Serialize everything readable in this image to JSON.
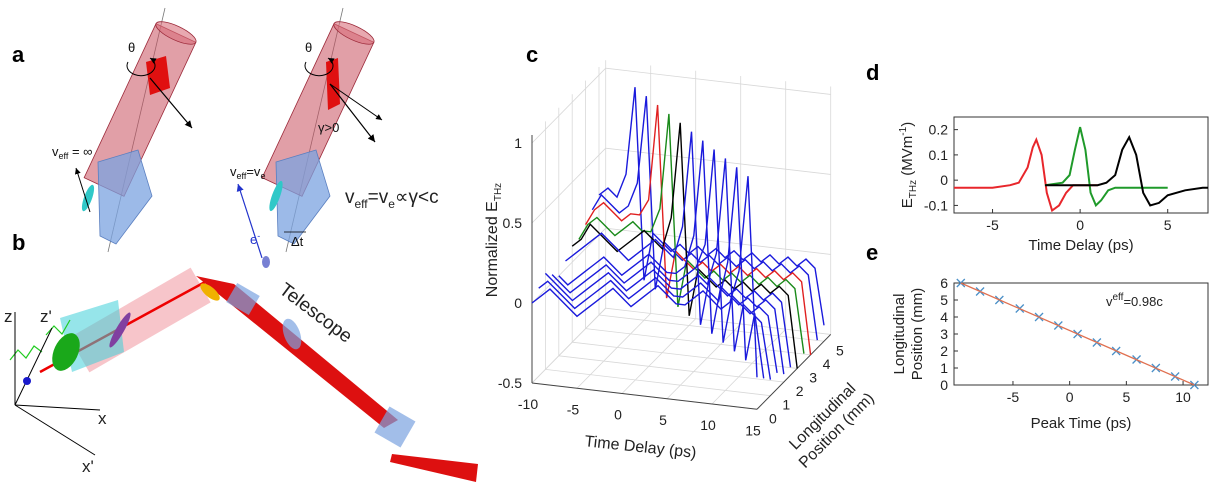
{
  "panels": {
    "a": {
      "label": "a",
      "theta_left": "θ",
      "theta_right": "θ",
      "veff_inf": {
        "v": "v",
        "sub": "eff",
        "rest": " = ∞"
      },
      "veff_ve": {
        "v": "v",
        "sub": "eff",
        "mid": "=v",
        "sub2": "e"
      },
      "gamma": "γ>0",
      "electron": {
        "e": "e",
        "sup": "-"
      },
      "dt": "Δt",
      "relation": {
        "v": "v",
        "sub": "eff",
        "mid": "=v",
        "sub2": "e",
        "rest": "∝γ<c"
      }
    },
    "b": {
      "label": "b",
      "z": "z",
      "z_prime": "z'",
      "x": "x",
      "x_prime": "x'",
      "telescope": "Telescope"
    },
    "c": {
      "label": "c"
    },
    "d": {
      "label": "d"
    },
    "e": {
      "label": "e"
    }
  },
  "chart_data": [
    {
      "type": "waterfall",
      "xlabel": "Time Delay (ps)",
      "ylabel": {
        "text": "Normalized E",
        "sub": "THz"
      },
      "zlabel": [
        "Longitudinal",
        "Position (mm)"
      ],
      "x": [
        -10,
        -9,
        -8,
        -7,
        -6,
        -5,
        -4,
        -3,
        -2,
        -1,
        0,
        1,
        2,
        3,
        4,
        5,
        6,
        7,
        8,
        9,
        10,
        11,
        12,
        13,
        14,
        15
      ],
      "xlim": [
        -10,
        15
      ],
      "xticks": [
        -10,
        -5,
        0,
        5,
        10,
        15
      ],
      "ylim": [
        -0.5,
        1.05
      ],
      "yticks": [
        -0.5,
        0,
        0.5,
        1
      ],
      "zlim": [
        0,
        5.5
      ],
      "zticks": [
        0,
        1,
        2,
        3,
        4,
        5
      ],
      "series": [
        {
          "position": 5,
          "color": "#1a1adc",
          "values": [
            0.25,
            0.3,
            0.25,
            0.4,
            0.95,
            -0.25,
            0.05,
            0,
            -0.05,
            0,
            -0.05,
            0,
            -0.05,
            0,
            -0.05,
            0,
            -0.05,
            0,
            -0.05,
            0,
            -0.05,
            0,
            -0.05,
            0,
            -0.05,
            -0.4
          ]
        },
        {
          "position": 4.5,
          "color": "#1a1adc",
          "values": [
            0.2,
            0.3,
            0.25,
            0.2,
            0.25,
            0.4,
            0.95,
            -0.25,
            0.05,
            0,
            -0.05,
            0,
            -0.05,
            0,
            -0.05,
            0,
            -0.05,
            0,
            -0.05,
            0,
            -0.05,
            0,
            -0.05,
            0,
            -0.05,
            -0.45
          ]
        },
        {
          "position": 4,
          "color": "#e02020",
          "values": [
            0.15,
            0.25,
            0.3,
            0.25,
            0.2,
            0.25,
            0.25,
            0.35,
            0.95,
            -0.25,
            0.05,
            0,
            -0.05,
            0,
            -0.05,
            0,
            -0.05,
            0,
            -0.05,
            0,
            -0.05,
            0,
            -0.05,
            0,
            -0.05,
            -0.5
          ]
        },
        {
          "position": 3.5,
          "color": "#1a8a1a",
          "values": [
            0.1,
            0.2,
            0.25,
            0.2,
            0.15,
            0.2,
            0.25,
            0.2,
            0.2,
            0.35,
            0.95,
            -0.25,
            0.05,
            0,
            -0.05,
            0,
            -0.05,
            0,
            -0.05,
            0,
            -0.05,
            0,
            -0.05,
            0,
            -0.05,
            -0.45
          ]
        },
        {
          "position": 3,
          "color": "#000000",
          "values": [
            0.1,
            0.15,
            0.25,
            0.2,
            0.15,
            0.1,
            0.15,
            0.2,
            0.25,
            0.2,
            0.15,
            0.35,
            0.95,
            -0.25,
            0.05,
            0,
            -0.05,
            0,
            -0.05,
            0,
            -0.05,
            0,
            -0.05,
            0,
            -0.05,
            -0.5
          ]
        },
        {
          "position": 2.5,
          "color": "#1a1adc",
          "values": [
            0.05,
            0.1,
            0.15,
            0.2,
            0.25,
            0.2,
            0.15,
            0.1,
            0.15,
            0.2,
            0.25,
            0.2,
            0.15,
            0.35,
            0.95,
            -0.25,
            0.05,
            0,
            -0.05,
            0,
            -0.05,
            0,
            -0.05,
            0,
            -0.05,
            -0.45
          ]
        },
        {
          "position": 2,
          "color": "#1a1adc",
          "values": [
            0,
            -0.05,
            0,
            0.05,
            0.1,
            0.15,
            0.1,
            0.05,
            0.1,
            0.15,
            0.2,
            0.15,
            0.1,
            0.1,
            0.15,
            0.35,
            0.95,
            -0.25,
            0.05,
            0,
            -0.05,
            0,
            -0.05,
            0,
            -0.05,
            -0.45
          ]
        },
        {
          "position": 1.5,
          "color": "#1a1adc",
          "values": [
            0.05,
            0,
            -0.05,
            0,
            0.05,
            0.1,
            0.15,
            0.1,
            0.05,
            0.1,
            0.15,
            0.2,
            0.15,
            0.1,
            0.1,
            0.15,
            0.2,
            0.35,
            0.95,
            -0.25,
            0.05,
            0,
            -0.05,
            0,
            -0.05,
            -0.4
          ]
        },
        {
          "position": 1,
          "color": "#1a1adc",
          "values": [
            0.1,
            0.05,
            0,
            -0.05,
            0,
            0.05,
            0.1,
            0.15,
            0.1,
            0.05,
            0.1,
            0.15,
            0.2,
            0.15,
            0.1,
            0.1,
            0.15,
            0.2,
            0.15,
            0.35,
            0.95,
            -0.25,
            0.05,
            0,
            -0.05,
            -0.4
          ]
        },
        {
          "position": 0.5,
          "color": "#1a1adc",
          "values": [
            0.05,
            0.1,
            0.05,
            0,
            -0.05,
            0,
            0.05,
            0.1,
            0.15,
            0.1,
            0.05,
            0.1,
            0.15,
            0.2,
            0.15,
            0.1,
            0.1,
            0.15,
            0.2,
            0.15,
            0.1,
            0.35,
            0.95,
            -0.25,
            0.05,
            -0.35
          ]
        },
        {
          "position": 0,
          "color": "#1a1adc",
          "values": [
            0,
            0.05,
            0.1,
            0.05,
            0,
            -0.05,
            0,
            0.05,
            0.1,
            0.15,
            0.1,
            0.05,
            0.1,
            0.15,
            0.2,
            0.15,
            0.1,
            0.1,
            0.15,
            0.2,
            0.15,
            0.1,
            0.15,
            0.35,
            0.95,
            -0.3
          ]
        }
      ]
    },
    {
      "type": "line",
      "xlabel": "Time Delay (ps)",
      "ylabel": {
        "text": "E",
        "sub": "THz",
        "unit": " (MVm",
        "sup": "-1",
        "close": ")"
      },
      "xlim": [
        -7.2,
        7.3
      ],
      "xticks": [
        -5,
        0,
        5
      ],
      "ylim": [
        -0.13,
        0.25
      ],
      "yticks": [
        -0.1,
        0,
        0.1,
        0.2
      ],
      "series": [
        {
          "color": "#e8262b",
          "x": [
            -7.2,
            -6,
            -5,
            -4,
            -3.5,
            -3,
            -2.7,
            -2.5,
            -2.2,
            -1.9,
            -1.6,
            -1.2,
            -0.8,
            -0.4,
            0,
            0.5,
            1
          ],
          "values": [
            -0.03,
            -0.03,
            -0.03,
            -0.02,
            -0.01,
            0.05,
            0.13,
            0.16,
            0.1,
            -0.05,
            -0.12,
            -0.1,
            -0.05,
            -0.02,
            -0.02,
            -0.02,
            -0.02
          ]
        },
        {
          "color": "#1f9a2a",
          "x": [
            -2,
            -1,
            -0.6,
            -0.3,
            0,
            0.3,
            0.6,
            0.9,
            1.2,
            1.6,
            2,
            3,
            4,
            5
          ],
          "values": [
            -0.02,
            -0.01,
            0.02,
            0.12,
            0.21,
            0.12,
            -0.05,
            -0.1,
            -0.08,
            -0.04,
            -0.03,
            -0.03,
            -0.03,
            -0.03
          ]
        },
        {
          "color": "#000000",
          "x": [
            -2,
            -1,
            0,
            1,
            1.5,
            2,
            2.4,
            2.8,
            3.2,
            3.6,
            4,
            4.5,
            5,
            6,
            7,
            7.3
          ],
          "values": [
            -0.02,
            -0.02,
            -0.02,
            -0.02,
            -0.01,
            0.02,
            0.12,
            0.17,
            0.1,
            -0.05,
            -0.1,
            -0.09,
            -0.06,
            -0.04,
            -0.03,
            -0.03
          ]
        }
      ]
    },
    {
      "type": "scatter",
      "xlabel": "Peak Time (ps)",
      "ylabel": [
        "Longitudinal",
        "Position (mm)"
      ],
      "annotation": {
        "v": "v",
        "sup": "eff",
        "rest": "=0.98c"
      },
      "xlim": [
        -10.2,
        12.2
      ],
      "xticks": [
        -5,
        0,
        5,
        10
      ],
      "ylim": [
        0,
        6
      ],
      "yticks": [
        0,
        1,
        2,
        3,
        4,
        5,
        6
      ],
      "series": [
        {
          "marker": "x",
          "color": "#4a90c8",
          "x": [
            -9.6,
            -7.9,
            -6.2,
            -4.4,
            -2.7,
            -1.0,
            0.7,
            2.4,
            4.1,
            5.9,
            7.6,
            9.3,
            11.0
          ],
          "values": [
            6,
            5.5,
            5,
            4.5,
            4,
            3.5,
            3,
            2.5,
            2,
            1.5,
            1,
            0.5,
            0
          ]
        },
        {
          "marker": "line",
          "color": "#e07050",
          "x": [
            -9.6,
            11.0
          ],
          "values": [
            6,
            0
          ]
        }
      ]
    }
  ]
}
